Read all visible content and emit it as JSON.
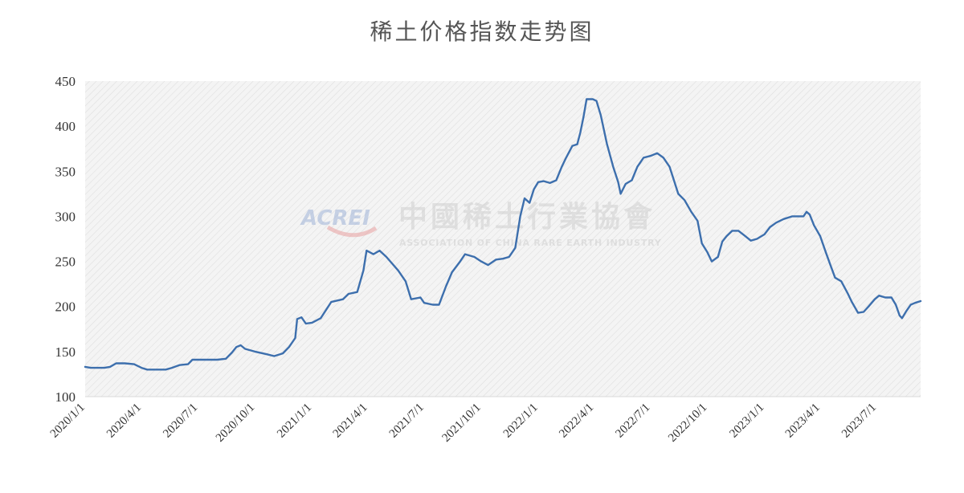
{
  "chart_data": {
    "type": "line",
    "title": "稀土价格指数走势图",
    "xlabel": "",
    "ylabel": "",
    "ylim": [
      100,
      450
    ],
    "yticks": [
      100,
      150,
      200,
      250,
      300,
      350,
      400,
      450
    ],
    "x_range": [
      "2020-01-01",
      "2023-09-10"
    ],
    "x_tick_labels": [
      "2020/1/1",
      "2020/4/1",
      "2020/7/1",
      "2020/10/1",
      "2021/1/1",
      "2021/4/1",
      "2021/7/1",
      "2021/10/1",
      "2022/1/1",
      "2022/4/1",
      "2022/7/1",
      "2022/10/1",
      "2023/1/1",
      "2023/4/1",
      "2023/7/1"
    ],
    "x_tick_dates": [
      "2020-01-01",
      "2020-04-01",
      "2020-07-01",
      "2020-10-01",
      "2021-01-01",
      "2021-04-01",
      "2021-07-01",
      "2021-10-01",
      "2022-01-01",
      "2022-04-01",
      "2022-07-01",
      "2022-10-01",
      "2023-01-01",
      "2023-04-01",
      "2023-07-01"
    ],
    "grid": false,
    "legend": "none",
    "series": [
      {
        "color": "#3d6fad",
        "points": [
          [
            "2020-01-01",
            133
          ],
          [
            "2020-01-10",
            132
          ],
          [
            "2020-02-01",
            132
          ],
          [
            "2020-02-10",
            133
          ],
          [
            "2020-02-20",
            137
          ],
          [
            "2020-03-05",
            137
          ],
          [
            "2020-03-20",
            136
          ],
          [
            "2020-04-01",
            132
          ],
          [
            "2020-04-10",
            130
          ],
          [
            "2020-05-10",
            130
          ],
          [
            "2020-05-20",
            132
          ],
          [
            "2020-06-01",
            135
          ],
          [
            "2020-06-15",
            136
          ],
          [
            "2020-06-22",
            141
          ],
          [
            "2020-07-10",
            141
          ],
          [
            "2020-08-01",
            141
          ],
          [
            "2020-08-15",
            142
          ],
          [
            "2020-08-25",
            149
          ],
          [
            "2020-09-01",
            155
          ],
          [
            "2020-09-08",
            157
          ],
          [
            "2020-09-15",
            153
          ],
          [
            "2020-10-01",
            150
          ],
          [
            "2020-10-20",
            147
          ],
          [
            "2020-11-01",
            145
          ],
          [
            "2020-11-15",
            148
          ],
          [
            "2020-11-25",
            155
          ],
          [
            "2020-12-05",
            165
          ],
          [
            "2020-12-08",
            186
          ],
          [
            "2020-12-15",
            188
          ],
          [
            "2020-12-22",
            181
          ],
          [
            "2021-01-01",
            182
          ],
          [
            "2021-01-15",
            187
          ],
          [
            "2021-02-01",
            205
          ],
          [
            "2021-02-20",
            208
          ],
          [
            "2021-03-01",
            214
          ],
          [
            "2021-03-15",
            216
          ],
          [
            "2021-03-25",
            240
          ],
          [
            "2021-03-30",
            262
          ],
          [
            "2021-04-10",
            258
          ],
          [
            "2021-04-20",
            262
          ],
          [
            "2021-05-01",
            255
          ],
          [
            "2021-05-20",
            240
          ],
          [
            "2021-06-01",
            228
          ],
          [
            "2021-06-10",
            208
          ],
          [
            "2021-06-25",
            210
          ],
          [
            "2021-07-01",
            204
          ],
          [
            "2021-07-15",
            202
          ],
          [
            "2021-07-25",
            202
          ],
          [
            "2021-08-05",
            222
          ],
          [
            "2021-08-15",
            238
          ],
          [
            "2021-08-28",
            250
          ],
          [
            "2021-09-05",
            258
          ],
          [
            "2021-09-20",
            255
          ],
          [
            "2021-10-01",
            250
          ],
          [
            "2021-10-12",
            246
          ],
          [
            "2021-10-25",
            252
          ],
          [
            "2021-11-05",
            253
          ],
          [
            "2021-11-15",
            255
          ],
          [
            "2021-11-25",
            265
          ],
          [
            "2021-12-03",
            300
          ],
          [
            "2021-12-10",
            320
          ],
          [
            "2021-12-18",
            315
          ],
          [
            "2021-12-25",
            330
          ],
          [
            "2022-01-01",
            338
          ],
          [
            "2022-01-10",
            339
          ],
          [
            "2022-01-20",
            337
          ],
          [
            "2022-01-30",
            340
          ],
          [
            "2022-02-08",
            355
          ],
          [
            "2022-02-15",
            365
          ],
          [
            "2022-02-25",
            378
          ],
          [
            "2022-03-05",
            380
          ],
          [
            "2022-03-10",
            393
          ],
          [
            "2022-03-15",
            410
          ],
          [
            "2022-03-20",
            430
          ],
          [
            "2022-03-30",
            430
          ],
          [
            "2022-04-05",
            428
          ],
          [
            "2022-04-12",
            412
          ],
          [
            "2022-04-22",
            380
          ],
          [
            "2022-05-02",
            355
          ],
          [
            "2022-05-10",
            338
          ],
          [
            "2022-05-14",
            325
          ],
          [
            "2022-05-22",
            336
          ],
          [
            "2022-06-01",
            340
          ],
          [
            "2022-06-10",
            355
          ],
          [
            "2022-06-20",
            365
          ],
          [
            "2022-07-01",
            367
          ],
          [
            "2022-07-12",
            370
          ],
          [
            "2022-07-22",
            365
          ],
          [
            "2022-08-01",
            355
          ],
          [
            "2022-08-08",
            340
          ],
          [
            "2022-08-15",
            325
          ],
          [
            "2022-08-25",
            318
          ],
          [
            "2022-09-05",
            305
          ],
          [
            "2022-09-15",
            295
          ],
          [
            "2022-09-22",
            270
          ],
          [
            "2022-10-01",
            260
          ],
          [
            "2022-10-08",
            250
          ],
          [
            "2022-10-18",
            255
          ],
          [
            "2022-10-25",
            272
          ],
          [
            "2022-11-01",
            278
          ],
          [
            "2022-11-10",
            284
          ],
          [
            "2022-11-20",
            284
          ],
          [
            "2022-12-01",
            278
          ],
          [
            "2022-12-10",
            273
          ],
          [
            "2022-12-20",
            275
          ],
          [
            "2023-01-01",
            280
          ],
          [
            "2023-01-10",
            288
          ],
          [
            "2023-01-20",
            293
          ],
          [
            "2023-02-01",
            297
          ],
          [
            "2023-02-15",
            300
          ],
          [
            "2023-03-05",
            300
          ],
          [
            "2023-03-10",
            305
          ],
          [
            "2023-03-15",
            302
          ],
          [
            "2023-03-22",
            290
          ],
          [
            "2023-04-01",
            278
          ],
          [
            "2023-04-10",
            260
          ],
          [
            "2023-04-18",
            245
          ],
          [
            "2023-04-25",
            232
          ],
          [
            "2023-05-05",
            228
          ],
          [
            "2023-05-15",
            215
          ],
          [
            "2023-05-22",
            205
          ],
          [
            "2023-06-01",
            193
          ],
          [
            "2023-06-10",
            194
          ],
          [
            "2023-06-18",
            200
          ],
          [
            "2023-06-28",
            208
          ],
          [
            "2023-07-05",
            212
          ],
          [
            "2023-07-15",
            210
          ],
          [
            "2023-07-25",
            210
          ],
          [
            "2023-08-01",
            202
          ],
          [
            "2023-08-07",
            190
          ],
          [
            "2023-08-11",
            187
          ],
          [
            "2023-08-18",
            195
          ],
          [
            "2023-08-25",
            202
          ],
          [
            "2023-09-01",
            204
          ],
          [
            "2023-09-10",
            206
          ]
        ]
      }
    ]
  },
  "watermark": {
    "logo_text": "ACREI",
    "chinese_text": "中國稀土行業協會",
    "english_text": "ASSOCIATION OF CHINA RARE EARTH INDUSTRY"
  },
  "colors": {
    "line": "#3d6fad",
    "plot_bg": "#f4f4f4",
    "hatch": "#dcdcdc",
    "text": "#333333",
    "title": "#555555"
  }
}
